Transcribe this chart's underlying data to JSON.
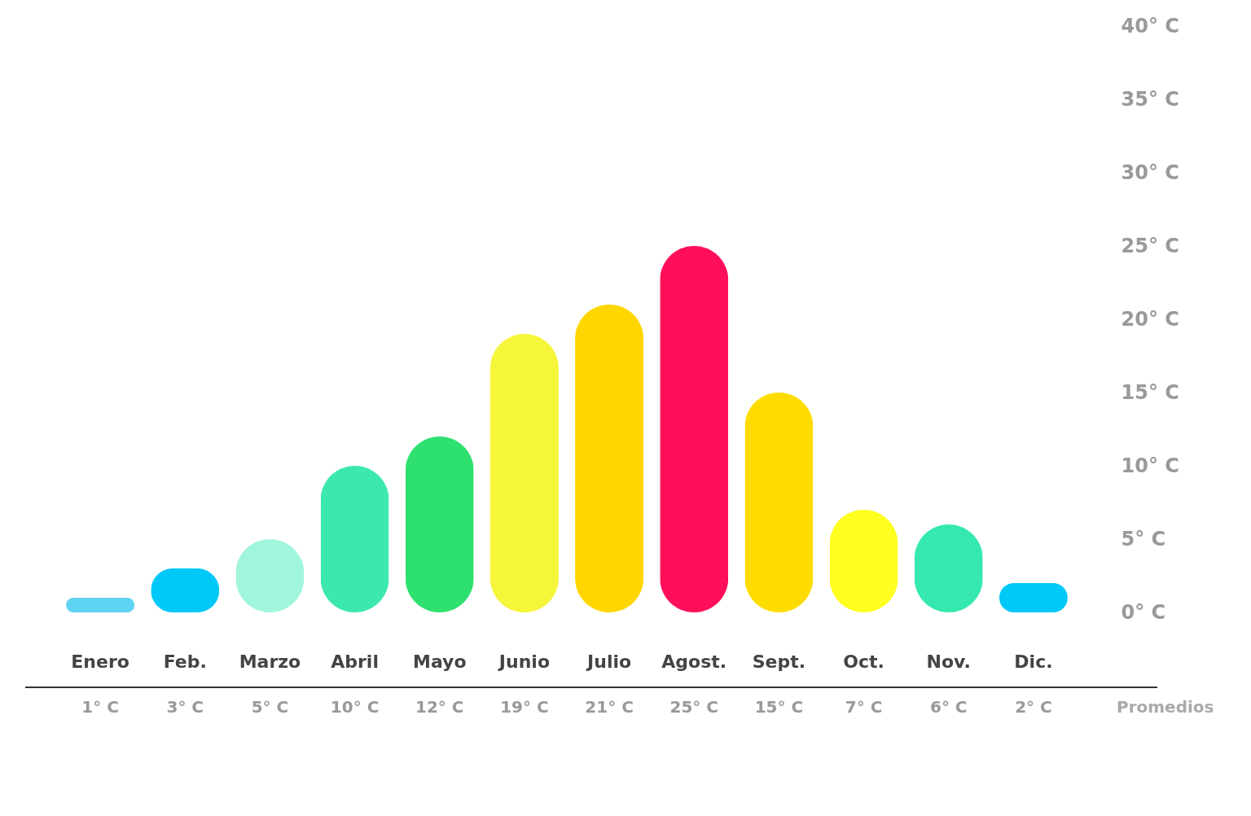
{
  "chart_data": {
    "type": "bar",
    "categories": [
      "Enero",
      "Feb.",
      "Marzo",
      "Abril",
      "Mayo",
      "Junio",
      "Julio",
      "Agost.",
      "Sept.",
      "Oct.",
      "Nov.",
      "Dic."
    ],
    "values": [
      1,
      3,
      5,
      10,
      12,
      19,
      21,
      25,
      15,
      7,
      6,
      2
    ],
    "colors": [
      "#5fd3f3",
      "#00c8f8",
      "#a0f5dd",
      "#3de8b0",
      "#2ee06f",
      "#f5f53a",
      "#ffd600",
      "#ff0f5a",
      "#ffdc00",
      "#ffff20",
      "#35e8b0",
      "#00c8f8"
    ],
    "value_labels": [
      "1° C",
      "3° C",
      "5° C",
      "10° C",
      "12° C",
      "19° C",
      "21° C",
      "25° C",
      "15° C",
      "7° C",
      "6° C",
      "2° C"
    ],
    "ylim": [
      0,
      40
    ],
    "yticks": [
      {
        "value": 0,
        "label": "0° C"
      },
      {
        "value": 5,
        "label": "5° C"
      },
      {
        "value": 10,
        "label": "10° C"
      },
      {
        "value": 15,
        "label": "15° C"
      },
      {
        "value": 20,
        "label": "20° C"
      },
      {
        "value": 25,
        "label": "25° C"
      },
      {
        "value": 30,
        "label": "30° C"
      },
      {
        "value": 35,
        "label": "35° C"
      },
      {
        "value": 40,
        "label": "40° C"
      }
    ],
    "grid": false,
    "annotations": [
      "Promedios"
    ]
  }
}
